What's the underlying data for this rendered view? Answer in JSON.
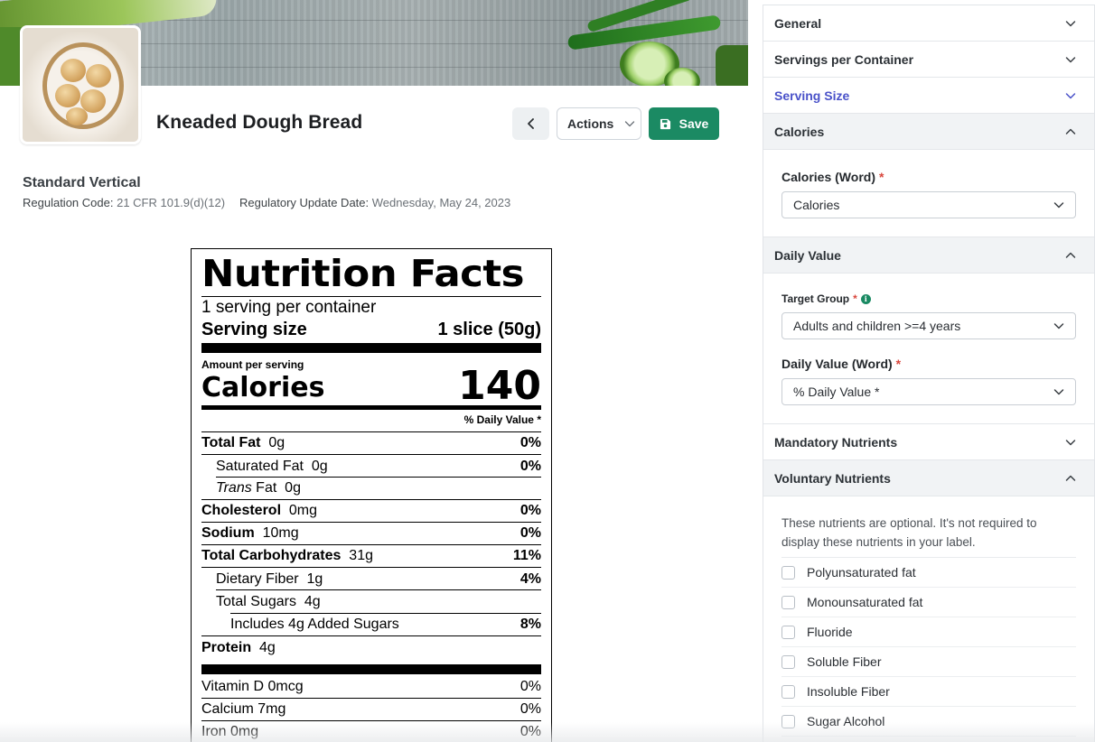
{
  "product": {
    "title": "Kneaded Dough Bread"
  },
  "toolbar": {
    "actions_label": "Actions",
    "save_label": "Save"
  },
  "label_format": {
    "title": "Standard Vertical",
    "regulation_code_label": "Regulation Code:",
    "regulation_code_value": "21 CFR 101.9(d)(12)",
    "update_date_label": "Regulatory Update Date:",
    "update_date_value": "Wednesday, May 24, 2023"
  },
  "nutrition_facts": {
    "title": "Nutrition Facts",
    "servings": "1 serving per container",
    "serving_size_label": "Serving size",
    "serving_size_value": "1 slice (50g)",
    "amount_per_serving": "Amount per serving",
    "calories_label": "Calories",
    "calories_value": "140",
    "daily_value_header": "% Daily Value *",
    "rows": [
      {
        "name": "Total Fat",
        "amount": "0g",
        "pct": "0%"
      },
      {
        "name": "Saturated Fat",
        "amount": "0g",
        "pct": "0%"
      },
      {
        "name_italic": "Trans",
        "name_rest": " Fat",
        "amount": "0g",
        "pct": ""
      },
      {
        "name": "Cholesterol",
        "amount": "0mg",
        "pct": "0%"
      },
      {
        "name": "Sodium",
        "amount": "10mg",
        "pct": "0%"
      },
      {
        "name": "Total Carbohydrates",
        "amount": "31g",
        "pct": "11%"
      },
      {
        "name": "Dietary Fiber",
        "amount": "1g",
        "pct": "4%"
      },
      {
        "name": "Total Sugars",
        "amount": "4g",
        "pct": ""
      },
      {
        "name": "Includes 4g Added Sugars",
        "amount": "",
        "pct": "8%"
      },
      {
        "name": "Protein",
        "amount": "4g",
        "pct": ""
      }
    ],
    "vitamins": [
      {
        "name": "Vitamin D 0mcg",
        "pct": "0%"
      },
      {
        "name": "Calcium 7mg",
        "pct": "0%"
      },
      {
        "name": "Iron 0mg",
        "pct": "0%"
      }
    ]
  },
  "panel": {
    "sections": {
      "general": "General",
      "servings_per_container": "Servings per Container",
      "serving_size": "Serving Size",
      "calories": "Calories",
      "daily_value": "Daily Value",
      "mandatory_nutrients": "Mandatory Nutrients",
      "voluntary_nutrients": "Voluntary Nutrients"
    },
    "calories_word": {
      "label": "Calories (Word)",
      "required": "*",
      "value": "Calories"
    },
    "target_group": {
      "label": "Target Group",
      "required": "*",
      "info_icon_glyph": "i",
      "value": "Adults and children >=4 years"
    },
    "daily_value_word": {
      "label": "Daily Value (Word)",
      "required": "*",
      "value": "% Daily Value *"
    },
    "voluntary_note": "These nutrients are optional. It's not required to display these nutrients in your label.",
    "voluntary_items": [
      "Polyunsaturated fat",
      "Monounsaturated fat",
      "Fluoride",
      "Soluble Fiber",
      "Insoluble Fiber",
      "Sugar Alcohol"
    ]
  },
  "colors": {
    "accent_green": "#1b8a63",
    "active_section": "#4a52c9",
    "required_star": "#d9473d"
  },
  "icons": {
    "back": "chevron-left-icon",
    "actions": "chevron-down-icon",
    "save": "floppy-disk-icon",
    "accordion_closed": "chevron-down-icon",
    "accordion_open": "chevron-up-icon"
  }
}
